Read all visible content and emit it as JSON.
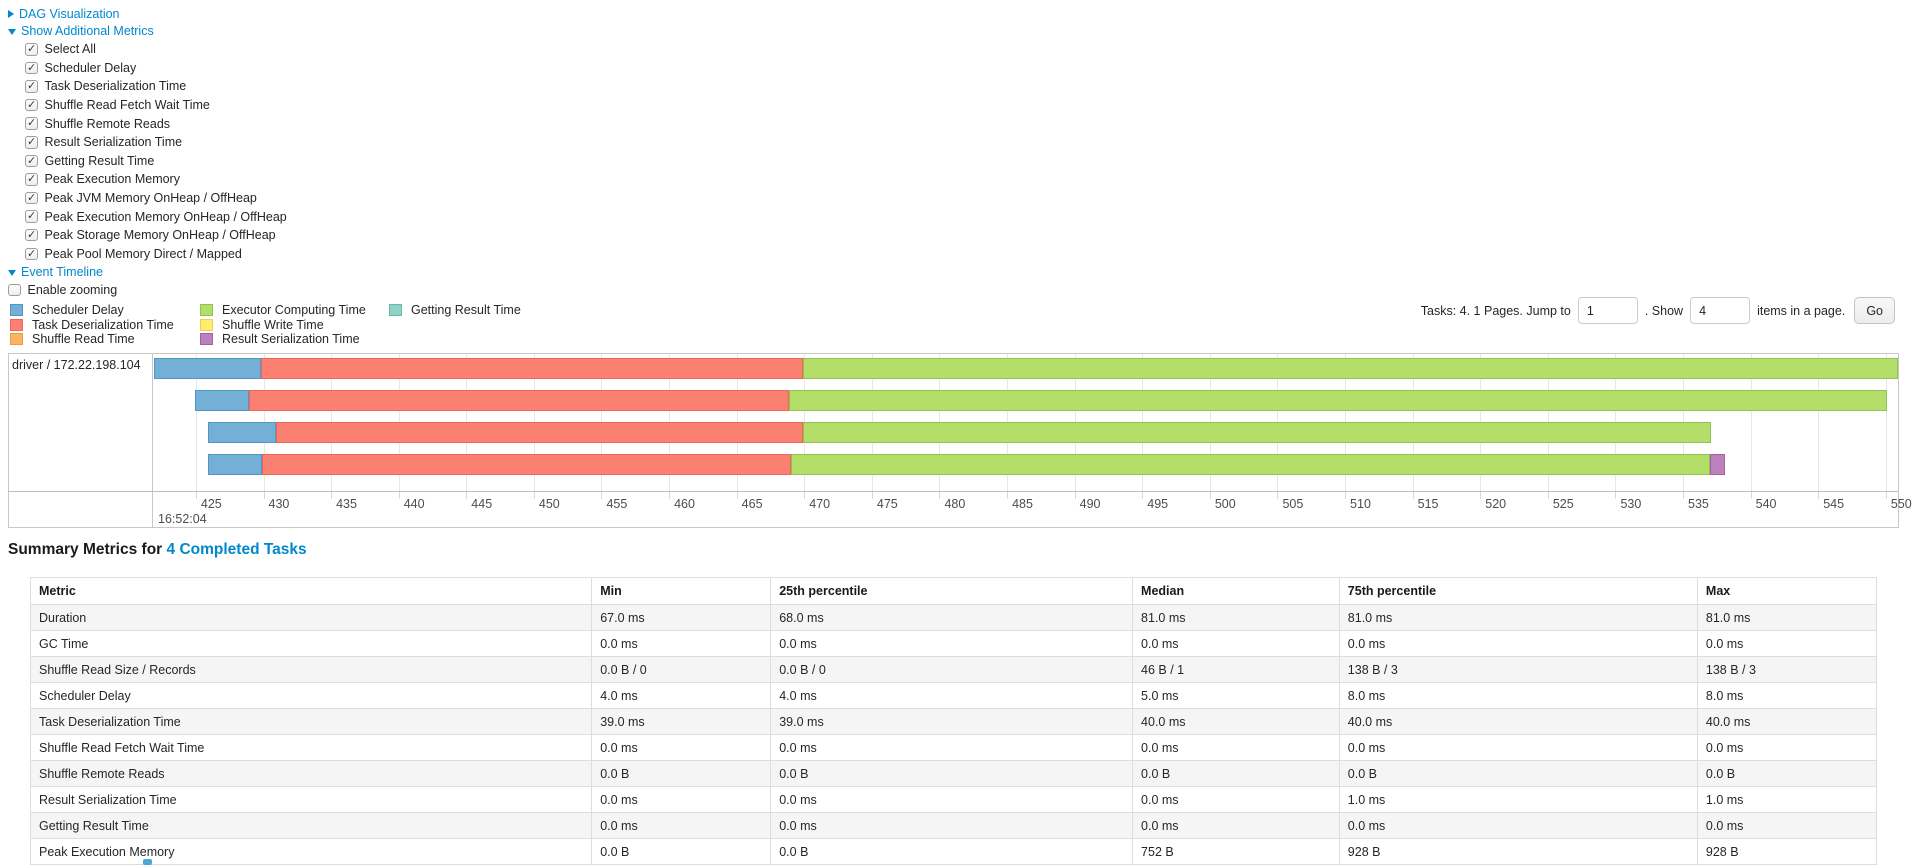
{
  "dag_section": {
    "label": "DAG Visualization",
    "state": "collapsed"
  },
  "metrics_section": {
    "label": "Show Additional Metrics",
    "state": "expanded",
    "items": [
      {
        "label": "Select All",
        "checked": true
      },
      {
        "label": "Scheduler Delay",
        "checked": true
      },
      {
        "label": "Task Deserialization Time",
        "checked": true
      },
      {
        "label": "Shuffle Read Fetch Wait Time",
        "checked": true
      },
      {
        "label": "Shuffle Remote Reads",
        "checked": true
      },
      {
        "label": "Result Serialization Time",
        "checked": true
      },
      {
        "label": "Getting Result Time",
        "checked": true
      },
      {
        "label": "Peak Execution Memory",
        "checked": true
      },
      {
        "label": "Peak JVM Memory OnHeap / OffHeap",
        "checked": true
      },
      {
        "label": "Peak Execution Memory OnHeap / OffHeap",
        "checked": true
      },
      {
        "label": "Peak Storage Memory OnHeap / OffHeap",
        "checked": true
      },
      {
        "label": "Peak Pool Memory Direct / Mapped",
        "checked": true
      }
    ]
  },
  "event_timeline_section": {
    "label": "Event Timeline",
    "state": "expanded",
    "enable_zooming_label": "Enable zooming",
    "enable_zooming_checked": false
  },
  "pagination": {
    "prefix": "Tasks: 4. 1 Pages. Jump to",
    "jump_value": "1",
    "mid": ". Show",
    "show_value": "4",
    "suffix": "items in a page.",
    "go_label": "Go"
  },
  "chart_data": {
    "type": "timeline",
    "group_label": "driver / 172.22.198.104",
    "x_axis": {
      "start": 421.9,
      "end": 550.9,
      "first_tick": 425,
      "last_tick": 550,
      "tick_interval": 5,
      "time_label": "16:52:04",
      "units": "milliseconds within 16:52:04"
    },
    "legend_columns": [
      [
        {
          "label": "Scheduler Delay",
          "fill": "#74B0D5",
          "border": "#4E97C9"
        },
        {
          "label": "Task Deserialization Time",
          "fill": "#FB8072",
          "border": "#E8695B"
        },
        {
          "label": "Shuffle Read Time",
          "fill": "#FDB462",
          "border": "#ED9D3F"
        }
      ],
      [
        {
          "label": "Executor Computing Time",
          "fill": "#B3DE69",
          "border": "#93C34D"
        },
        {
          "label": "Shuffle Write Time",
          "fill": "#FFED6F",
          "border": "#E6D44F"
        },
        {
          "label": "Result Serialization Time",
          "fill": "#BC80BD",
          "border": "#A55FA6"
        }
      ],
      [
        {
          "label": "Getting Result Time",
          "fill": "#8DD3C7",
          "border": "#66BAA9"
        }
      ]
    ],
    "tasks": [
      {
        "segments": [
          {
            "name": "Scheduler Delay",
            "start": 421.9,
            "end": 429.8
          },
          {
            "name": "Task Deserialization Time",
            "start": 429.8,
            "end": 469.9
          },
          {
            "name": "Executor Computing Time",
            "start": 469.9,
            "end": 551.0
          }
        ]
      },
      {
        "segments": [
          {
            "name": "Scheduler Delay",
            "start": 424.9,
            "end": 428.9
          },
          {
            "name": "Task Deserialization Time",
            "start": 428.9,
            "end": 468.9
          },
          {
            "name": "Executor Computing Time",
            "start": 468.9,
            "end": 550.1
          }
        ]
      },
      {
        "segments": [
          {
            "name": "Scheduler Delay",
            "start": 425.9,
            "end": 430.9
          },
          {
            "name": "Task Deserialization Time",
            "start": 430.9,
            "end": 469.9
          },
          {
            "name": "Executor Computing Time",
            "start": 469.9,
            "end": 537.1
          }
        ]
      },
      {
        "segments": [
          {
            "name": "Scheduler Delay",
            "start": 425.9,
            "end": 429.9
          },
          {
            "name": "Task Deserialization Time",
            "start": 429.9,
            "end": 469.0
          },
          {
            "name": "Executor Computing Time",
            "start": 469.0,
            "end": 537.0
          },
          {
            "name": "Result Serialization Time",
            "start": 537.0,
            "end": 538.1
          }
        ]
      }
    ]
  },
  "summary": {
    "title_prefix": "Summary Metrics for",
    "title_link": "4 Completed Tasks"
  },
  "table": {
    "headers": [
      "Metric",
      "Min",
      "25th percentile",
      "Median",
      "75th percentile",
      "Max"
    ],
    "rows": [
      [
        "Duration",
        "67.0 ms",
        "68.0 ms",
        "81.0 ms",
        "81.0 ms",
        "81.0 ms"
      ],
      [
        "GC Time",
        "0.0 ms",
        "0.0 ms",
        "0.0 ms",
        "0.0 ms",
        "0.0 ms"
      ],
      [
        "Shuffle Read Size / Records",
        "0.0 B / 0",
        "0.0 B / 0",
        "46 B / 1",
        "138 B / 3",
        "138 B / 3"
      ],
      [
        "Scheduler Delay",
        "4.0 ms",
        "4.0 ms",
        "5.0 ms",
        "8.0 ms",
        "8.0 ms"
      ],
      [
        "Task Deserialization Time",
        "39.0 ms",
        "39.0 ms",
        "40.0 ms",
        "40.0 ms",
        "40.0 ms"
      ],
      [
        "Shuffle Read Fetch Wait Time",
        "0.0 ms",
        "0.0 ms",
        "0.0 ms",
        "0.0 ms",
        "0.0 ms"
      ],
      [
        "Shuffle Remote Reads",
        "0.0 B",
        "0.0 B",
        "0.0 B",
        "0.0 B",
        "0.0 B"
      ],
      [
        "Result Serialization Time",
        "0.0 ms",
        "0.0 ms",
        "0.0 ms",
        "1.0 ms",
        "1.0 ms"
      ],
      [
        "Getting Result Time",
        "0.0 ms",
        "0.0 ms",
        "0.0 ms",
        "0.0 ms",
        "0.0 ms"
      ],
      [
        "Peak Execution Memory",
        "0.0 B",
        "0.0 B",
        "752 B",
        "928 B",
        "928 B"
      ]
    ]
  }
}
